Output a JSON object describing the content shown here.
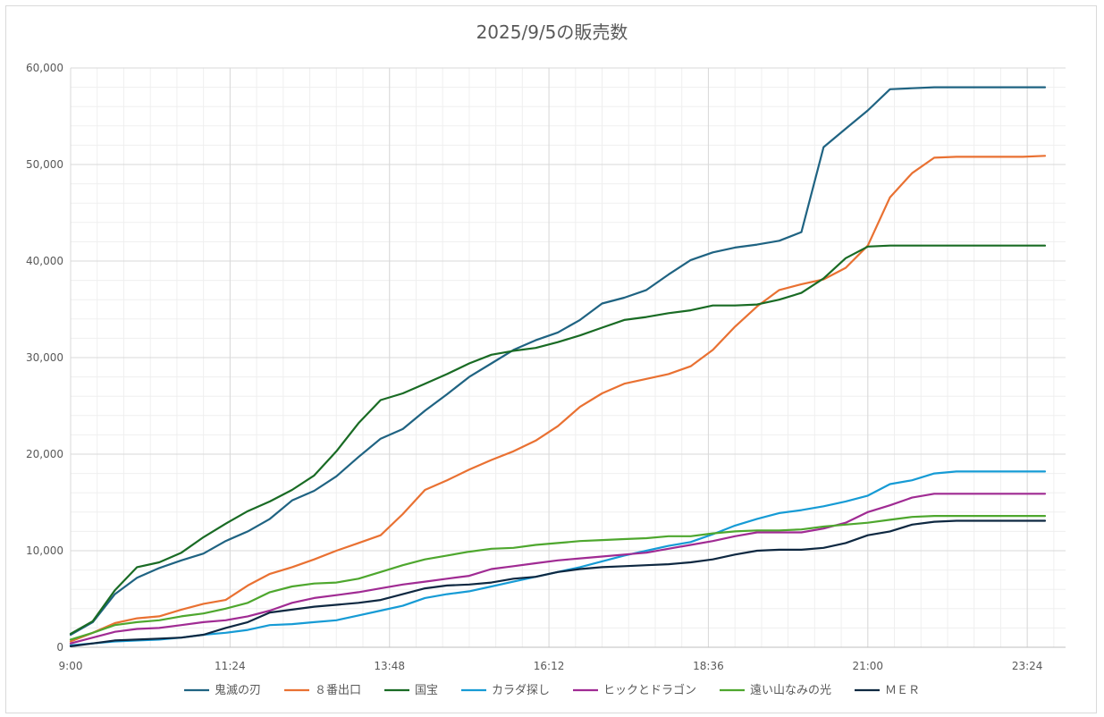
{
  "chart_data": {
    "type": "line",
    "title": "2025/9/5の販売数",
    "xlabel": "",
    "ylabel": "",
    "x_ticks": [
      "9:00",
      "11:24",
      "13:48",
      "16:12",
      "18:36",
      "21:00",
      "23:24"
    ],
    "x": [
      "9:00",
      "9:20",
      "9:40",
      "10:00",
      "10:20",
      "10:40",
      "11:00",
      "11:20",
      "11:40",
      "12:00",
      "12:20",
      "12:40",
      "13:00",
      "13:20",
      "13:40",
      "14:00",
      "14:20",
      "14:40",
      "15:00",
      "15:20",
      "15:40",
      "16:00",
      "16:20",
      "16:40",
      "17:00",
      "17:20",
      "17:40",
      "18:00",
      "18:20",
      "18:40",
      "19:00",
      "19:20",
      "19:40",
      "20:00",
      "20:20",
      "20:40",
      "21:00",
      "21:20",
      "21:40",
      "22:00",
      "22:20",
      "22:40",
      "23:00",
      "23:20",
      "23:40"
    ],
    "ylim": [
      0,
      60000
    ],
    "y_ticks": [
      "0",
      "10,000",
      "20,000",
      "30,000",
      "40,000",
      "50,000",
      "60,000"
    ],
    "grid": true,
    "legend_position": "bottom",
    "series": [
      {
        "name": "鬼滅の刃",
        "color": "#1f6382",
        "values": [
          1300,
          2600,
          5500,
          7200,
          8200,
          9000,
          9700,
          11000,
          12000,
          13300,
          15200,
          16200,
          17700,
          19700,
          21600,
          22600,
          24500,
          26200,
          28000,
          29400,
          30800,
          31800,
          32600,
          33900,
          35600,
          36200,
          37000,
          38600,
          40100,
          40900,
          41400,
          41700,
          42100,
          43000,
          51800,
          53700,
          55600,
          57800,
          57900,
          58000,
          58000,
          58000,
          58000,
          58000,
          58000
        ]
      },
      {
        "name": "８番出口",
        "color": "#e97132",
        "values": [
          600,
          1500,
          2500,
          3000,
          3200,
          3900,
          4500,
          4900,
          6400,
          7600,
          8300,
          9100,
          10000,
          10800,
          11600,
          13800,
          16300,
          17300,
          18400,
          19400,
          20300,
          21400,
          22900,
          24900,
          26300,
          27300,
          27800,
          28300,
          29100,
          30800,
          33200,
          35300,
          37000,
          37600,
          38100,
          39300,
          41600,
          46600,
          49100,
          50700,
          50800,
          50800,
          50800,
          50800,
          50900
        ]
      },
      {
        "name": "国宝",
        "color": "#196b24",
        "values": [
          1400,
          2700,
          5900,
          8300,
          8800,
          9800,
          11400,
          12800,
          14100,
          15100,
          16300,
          17800,
          20300,
          23200,
          25600,
          26300,
          27300,
          28300,
          29400,
          30300,
          30700,
          31000,
          31600,
          32300,
          33100,
          33900,
          34200,
          34600,
          34900,
          35400,
          35400,
          35500,
          36000,
          36700,
          38200,
          40300,
          41500,
          41600,
          41600,
          41600,
          41600,
          41600,
          41600,
          41600,
          41600
        ]
      },
      {
        "name": "カラダ探し",
        "color": "#169bd5",
        "values": [
          200,
          400,
          600,
          700,
          800,
          1000,
          1300,
          1500,
          1800,
          2300,
          2400,
          2600,
          2800,
          3300,
          3800,
          4300,
          5100,
          5500,
          5800,
          6300,
          6800,
          7300,
          7800,
          8300,
          8900,
          9500,
          10000,
          10500,
          10900,
          11700,
          12600,
          13300,
          13900,
          14200,
          14600,
          15100,
          15700,
          16900,
          17300,
          18000,
          18200,
          18200,
          18200,
          18200,
          18200
        ]
      },
      {
        "name": "ヒックとドラゴン",
        "color": "#a02b93",
        "values": [
          400,
          1000,
          1600,
          1900,
          2000,
          2300,
          2600,
          2800,
          3200,
          3800,
          4600,
          5100,
          5400,
          5700,
          6100,
          6500,
          6800,
          7100,
          7400,
          8100,
          8400,
          8700,
          9000,
          9200,
          9400,
          9600,
          9800,
          10200,
          10600,
          11000,
          11500,
          11900,
          11900,
          11900,
          12300,
          12900,
          14000,
          14700,
          15500,
          15900,
          15900,
          15900,
          15900,
          15900,
          15900
        ]
      },
      {
        "name": "遠い山なみの光",
        "color": "#4ea72e",
        "values": [
          800,
          1500,
          2300,
          2600,
          2800,
          3200,
          3500,
          4000,
          4600,
          5700,
          6300,
          6600,
          6700,
          7100,
          7800,
          8500,
          9100,
          9500,
          9900,
          10200,
          10300,
          10600,
          10800,
          11000,
          11100,
          11200,
          11300,
          11500,
          11500,
          11800,
          12000,
          12100,
          12100,
          12200,
          12500,
          12700,
          12900,
          13200,
          13500,
          13600,
          13600,
          13600,
          13600,
          13600,
          13600
        ]
      },
      {
        "name": "ＭＥＲ",
        "color": "#0e2841",
        "values": [
          100,
          400,
          700,
          800,
          900,
          1000,
          1300,
          2000,
          2600,
          3600,
          3900,
          4200,
          4400,
          4600,
          4900,
          5500,
          6100,
          6400,
          6500,
          6700,
          7100,
          7300,
          7800,
          8100,
          8300,
          8400,
          8500,
          8600,
          8800,
          9100,
          9600,
          10000,
          10100,
          10100,
          10300,
          10800,
          11600,
          12000,
          12700,
          13000,
          13100,
          13100,
          13100,
          13100,
          13100
        ]
      }
    ]
  }
}
